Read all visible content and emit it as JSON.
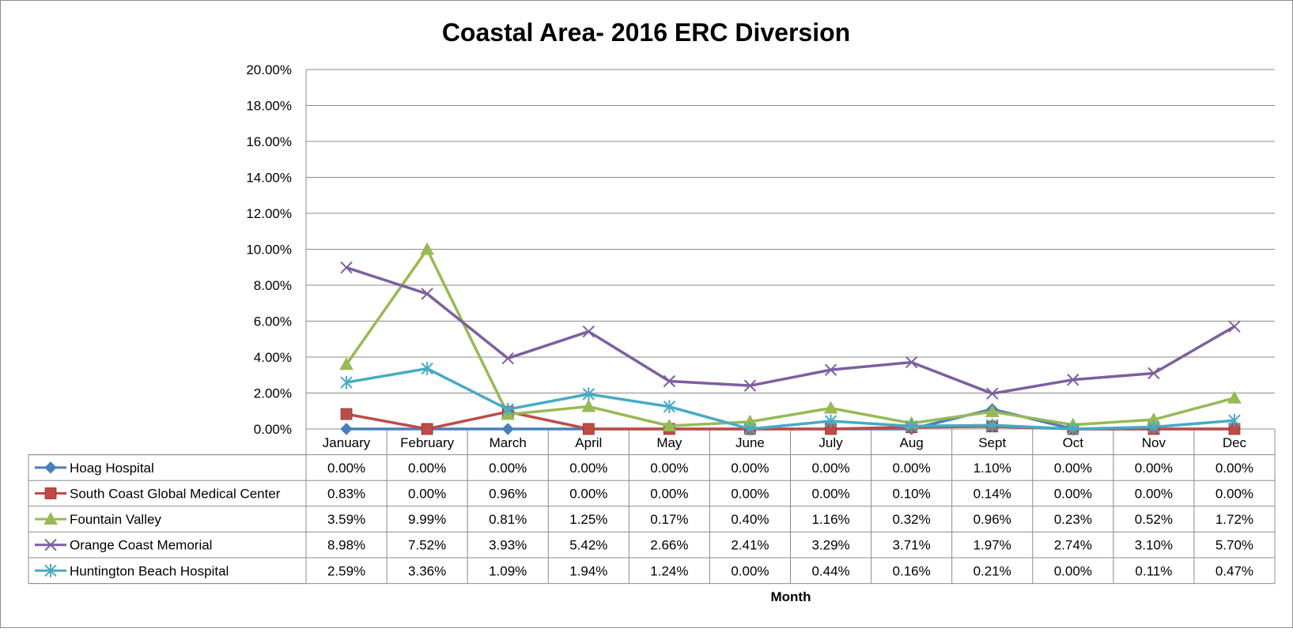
{
  "chart_data": {
    "type": "line",
    "title": "Coastal Area- 2016 ERC Diversion",
    "xlabel": "Month",
    "ylabel": "",
    "ylim": [
      0,
      20
    ],
    "y_ticks": [
      "0.00%",
      "2.00%",
      "4.00%",
      "6.00%",
      "8.00%",
      "10.00%",
      "12.00%",
      "14.00%",
      "16.00%",
      "18.00%",
      "20.00%"
    ],
    "categories": [
      "January",
      "February",
      "March",
      "April",
      "May",
      "June",
      "July",
      "Aug",
      "Sept",
      "Oct",
      "Nov",
      "Dec"
    ],
    "grid": true,
    "legend": "data-table",
    "series": [
      {
        "name": "Hoag Hospital",
        "color": "#4A7EBB",
        "marker": "diamond",
        "values": [
          0.0,
          0.0,
          0.0,
          0.0,
          0.0,
          0.0,
          0.0,
          0.0,
          1.1,
          0.0,
          0.0,
          0.0
        ],
        "labels": [
          "0.00%",
          "0.00%",
          "0.00%",
          "0.00%",
          "0.00%",
          "0.00%",
          "0.00%",
          "0.00%",
          "1.10%",
          "0.00%",
          "0.00%",
          "0.00%"
        ]
      },
      {
        "name": "South Coast Global Medical Center",
        "color": "#BE4B48",
        "marker": "square",
        "values": [
          0.83,
          0.0,
          0.96,
          0.0,
          0.0,
          0.0,
          0.0,
          0.1,
          0.14,
          0.0,
          0.0,
          0.0
        ],
        "labels": [
          "0.83%",
          "0.00%",
          "0.96%",
          "0.00%",
          "0.00%",
          "0.00%",
          "0.00%",
          "0.10%",
          "0.14%",
          "0.00%",
          "0.00%",
          "0.00%"
        ]
      },
      {
        "name": "Fountain Valley",
        "color": "#98B954",
        "marker": "triangle",
        "values": [
          3.59,
          9.99,
          0.81,
          1.25,
          0.17,
          0.4,
          1.16,
          0.32,
          0.96,
          0.23,
          0.52,
          1.72
        ],
        "labels": [
          "3.59%",
          "9.99%",
          "0.81%",
          "1.25%",
          "0.17%",
          "0.40%",
          "1.16%",
          "0.32%",
          "0.96%",
          "0.23%",
          "0.52%",
          "1.72%"
        ]
      },
      {
        "name": "Orange Coast Memorial",
        "color": "#7D5FA0",
        "marker": "x",
        "values": [
          8.98,
          7.52,
          3.93,
          5.42,
          2.66,
          2.41,
          3.29,
          3.71,
          1.97,
          2.74,
          3.1,
          5.7
        ],
        "labels": [
          "8.98%",
          "7.52%",
          "3.93%",
          "5.42%",
          "2.66%",
          "2.41%",
          "3.29%",
          "3.71%",
          "1.97%",
          "2.74%",
          "3.10%",
          "5.70%"
        ]
      },
      {
        "name": "Huntington Beach Hospital",
        "color": "#46AAC5",
        "marker": "star",
        "values": [
          2.59,
          3.36,
          1.09,
          1.94,
          1.24,
          0.0,
          0.44,
          0.16,
          0.21,
          0.0,
          0.11,
          0.47
        ],
        "labels": [
          "2.59%",
          "3.36%",
          "1.09%",
          "1.94%",
          "1.24%",
          "0.00%",
          "0.44%",
          "0.16%",
          "0.21%",
          "0.00%",
          "0.11%",
          "0.47%"
        ]
      }
    ]
  }
}
